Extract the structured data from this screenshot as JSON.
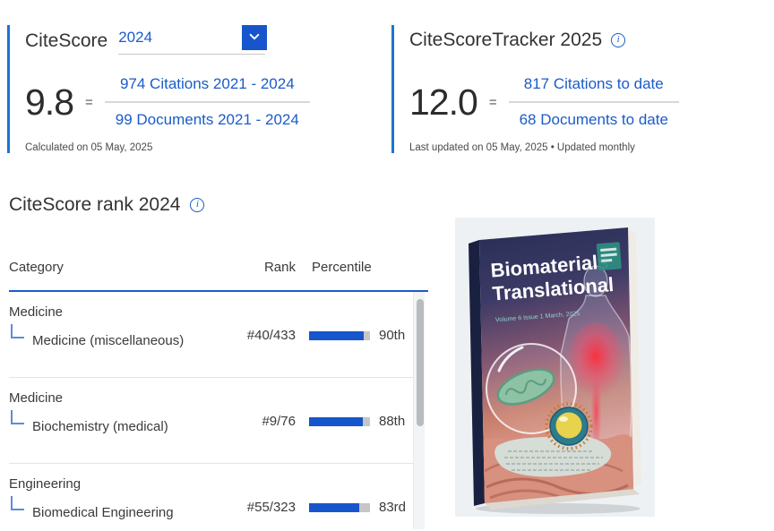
{
  "colors": {
    "accent_blue": "#1a5cc8",
    "button_blue": "#1655cc",
    "panel_rule_blue": "#1f74d2",
    "bar_fill": "#1655cc",
    "bar_track": "#c6c6c6",
    "connector_blue": "#5b8ed6"
  },
  "citescore": {
    "title": "CiteScore",
    "year": "2024",
    "score": "9.8",
    "equals": "=",
    "numerator": "974 Citations 2021 - 2024",
    "denominator": "99 Documents 2021 - 2024",
    "footnote": "Calculated on 05 May, 2025"
  },
  "tracker": {
    "title": "CiteScoreTracker 2025",
    "score": "12.0",
    "equals": "=",
    "numerator": "817 Citations to date",
    "denominator": "68 Documents to date",
    "footnote": "Last updated on 05 May, 2025 • Updated monthly"
  },
  "rank": {
    "title": "CiteScore rank 2024",
    "columns": {
      "category": "Category",
      "rank": "Rank",
      "percentile": "Percentile"
    },
    "rows": [
      {
        "parent": "Medicine",
        "subcategory": "Medicine (miscellaneous)",
        "rank": "#40/433",
        "percentile": "90th",
        "percent": 90
      },
      {
        "parent": "Medicine",
        "subcategory": "Biochemistry (medical)",
        "rank": "#9/76",
        "percentile": "88th",
        "percent": 88
      },
      {
        "parent": "Engineering",
        "subcategory": "Biomedical Engineering",
        "rank": "#55/323",
        "percentile": "83rd",
        "percent": 83
      }
    ]
  },
  "cover": {
    "title_line1": "Biomaterials",
    "title_line2": "Translational",
    "issue_info": "Volume 6   Issue 1   March, 2025"
  }
}
